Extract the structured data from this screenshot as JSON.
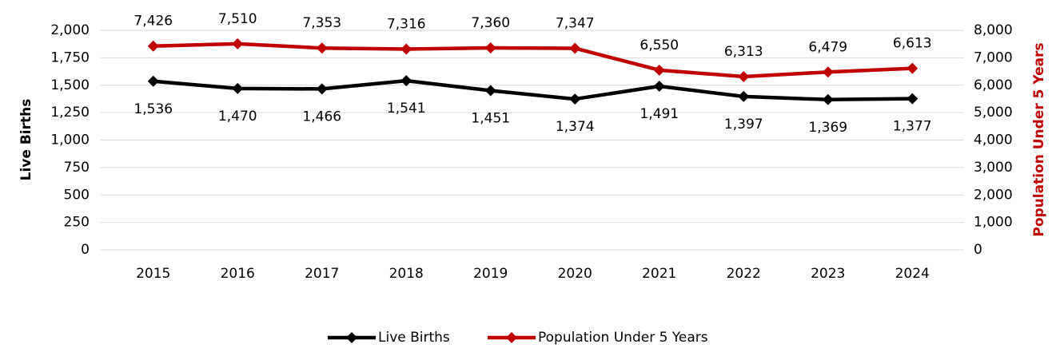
{
  "chart_data": {
    "type": "line",
    "categories": [
      "2015",
      "2016",
      "2017",
      "2018",
      "2019",
      "2020",
      "2021",
      "2022",
      "2023",
      "2024"
    ],
    "series": [
      {
        "name": "Live Births",
        "color": "#000000",
        "axis": "y",
        "values": [
          1536,
          1470,
          1466,
          1541,
          1451,
          1374,
          1491,
          1397,
          1369,
          1377
        ],
        "value_labels": [
          "1,536",
          "1,470",
          "1,466",
          "1,541",
          "1,451",
          "1,374",
          "1,491",
          "1,397",
          "1,369",
          "1,377"
        ]
      },
      {
        "name": "Population Under 5 Years",
        "color": "#c00000",
        "axis": "y2",
        "values": [
          7426,
          7510,
          7353,
          7316,
          7360,
          7347,
          6550,
          6313,
          6479,
          6613
        ],
        "value_labels": [
          "7,426",
          "7,510",
          "7,353",
          "7,316",
          "7,360",
          "7,347",
          "6,550",
          "6,313",
          "6,479",
          "6,613"
        ]
      }
    ],
    "ylabel": "Live Births",
    "y2label": "Population Under 5 Years",
    "ylim": [
      0,
      2000
    ],
    "yticks": [
      0,
      250,
      500,
      750,
      {
        "value": 1000,
        "label": "1,000"
      },
      {
        "value": 1250,
        "label": "1,250"
      },
      {
        "value": 1500,
        "label": "1,500"
      },
      {
        "value": 1750,
        "label": "1,750"
      },
      {
        "value": 2000,
        "label": "2,000"
      }
    ],
    "y2lim": [
      0,
      8000
    ],
    "y2ticks": [
      0,
      {
        "value": 1000,
        "label": "1,000"
      },
      {
        "value": 2000,
        "label": "2,000"
      },
      {
        "value": 3000,
        "label": "3,000"
      },
      {
        "value": 4000,
        "label": "4,000"
      },
      {
        "value": 5000,
        "label": "5,000"
      },
      {
        "value": 6000,
        "label": "6,000"
      },
      {
        "value": 7000,
        "label": "7,000"
      },
      {
        "value": 8000,
        "label": "8,000"
      }
    ],
    "grid": true,
    "legend": "bottom"
  }
}
